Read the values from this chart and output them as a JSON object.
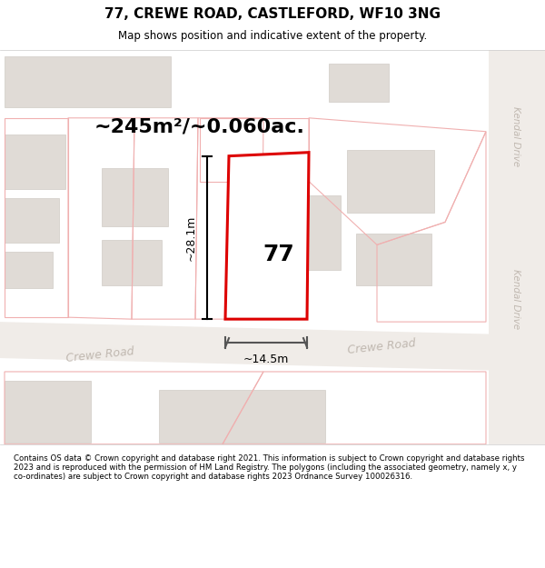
{
  "title": "77, CREWE ROAD, CASTLEFORD, WF10 3NG",
  "subtitle": "Map shows position and indicative extent of the property.",
  "area_label": "~245m²/~0.060ac.",
  "house_number": "77",
  "dim_height": "~28.1m",
  "dim_width": "~14.5m",
  "footer": "Contains OS data © Crown copyright and database right 2021. This information is subject to Crown copyright and database rights 2023 and is reproduced with the permission of HM Land Registry. The polygons (including the associated geometry, namely x, y co-ordinates) are subject to Crown copyright and database rights 2023 Ordnance Survey 100026316.",
  "map_bg": "#ffffff",
  "fig_bg": "#ffffff",
  "road_fill": "#f0ece8",
  "building_fill": "#e0dbd6",
  "building_edge": "#d0cbc6",
  "property_edge": "#dd0000",
  "property_fill": "#ffffff",
  "parcel_edge": "#f0b0b0",
  "road_label_color": "#c0b8b0",
  "kendal_color": "#c0b8b0",
  "dim_color": "#000000",
  "title_color": "#000000",
  "footer_color": "#000000",
  "sep_line_color": "#cccccc",
  "footer_sep_color": "#cccccc"
}
